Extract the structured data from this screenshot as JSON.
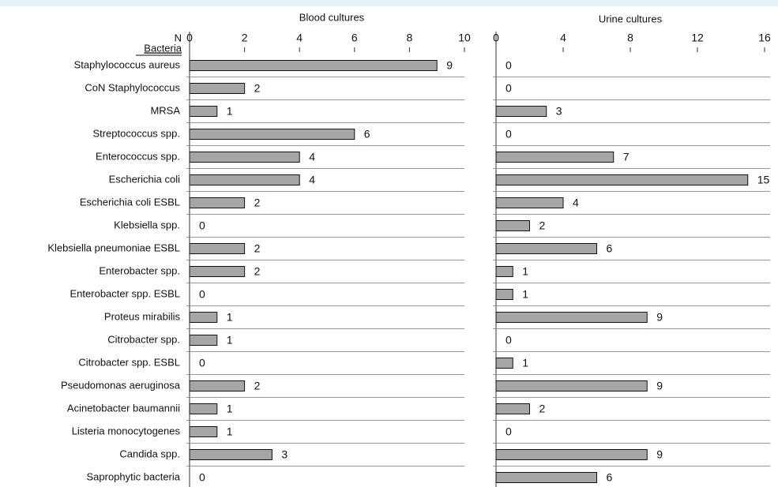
{
  "chart_data": [
    {
      "type": "bar",
      "orientation": "horizontal",
      "title": "Blood cultures",
      "x_label": "N",
      "y_label": "Bacteria",
      "categories": [
        "Staphylococcus aureus",
        "CoN Staphylococcus",
        "MRSA",
        "Streptococcus spp.",
        "Enterococcus spp.",
        "Escherichia coli",
        "Escherichia coli ESBL",
        "Klebsiella spp.",
        "Klebsiella pneumoniae ESBL",
        "Enterobacter spp.",
        "Enterobacter spp. ESBL",
        "Proteus mirabilis",
        "Citrobacter spp.",
        "Citrobacter spp. ESBL",
        "Pseudomonas aeruginosa",
        "Acinetobacter baumannii",
        "Listeria monocytogenes",
        "Candida spp.",
        "Saprophytic bacteria"
      ],
      "values": [
        9,
        2,
        1,
        6,
        4,
        4,
        2,
        0,
        2,
        2,
        0,
        1,
        1,
        0,
        2,
        1,
        1,
        3,
        0
      ],
      "color": "#a6a6a6",
      "xlim": [
        0,
        10
      ],
      "xticks": [
        0,
        2,
        4,
        6,
        8,
        10
      ]
    },
    {
      "type": "bar",
      "orientation": "horizontal",
      "title": "Urine cultures",
      "values": [
        0,
        0,
        3,
        0,
        7,
        15,
        4,
        2,
        6,
        1,
        1,
        9,
        0,
        1,
        9,
        2,
        0,
        9,
        6
      ],
      "color": "#a6a6a6",
      "xlim": [
        0,
        16
      ],
      "xticks": [
        0,
        4,
        8,
        12,
        16
      ]
    }
  ]
}
